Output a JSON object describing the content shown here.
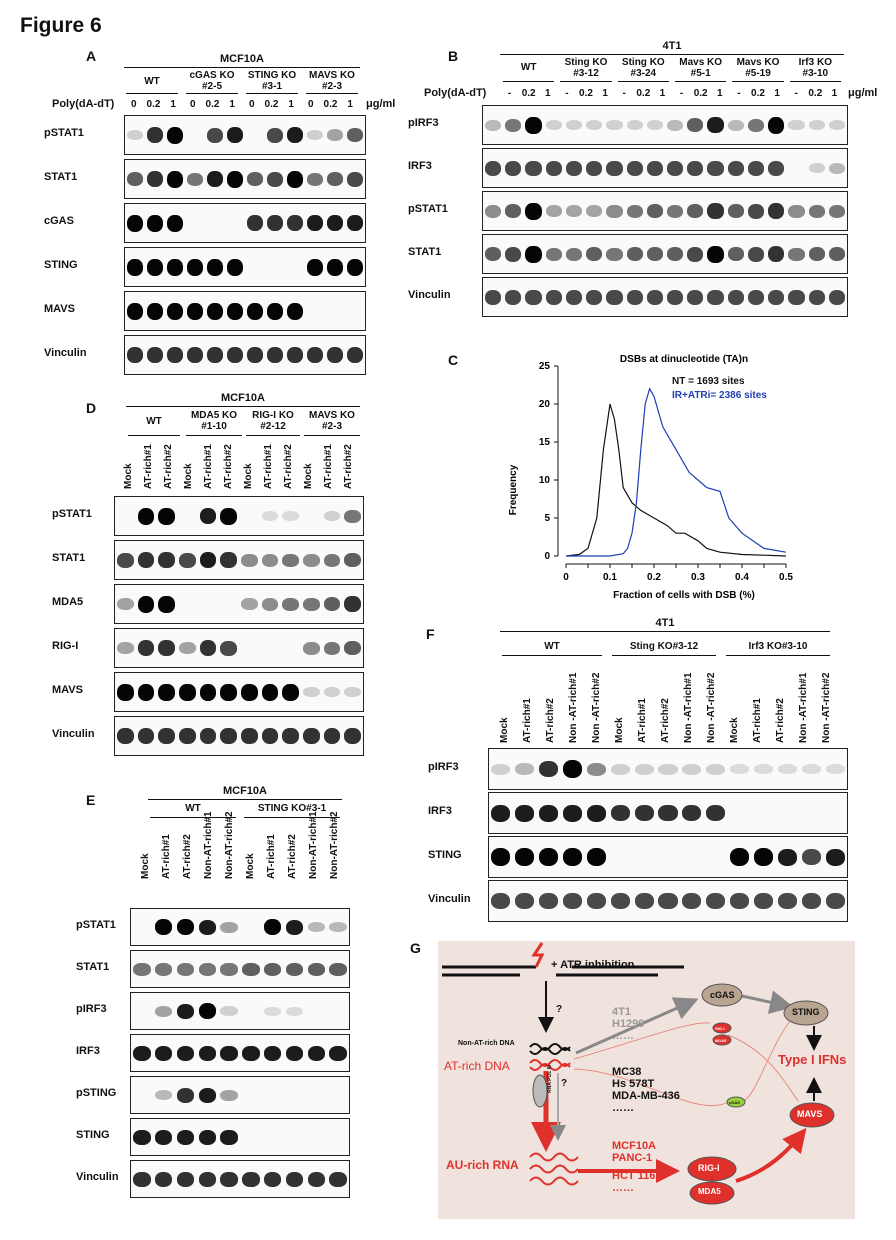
{
  "figure_title": "Figure 6",
  "panelA": {
    "letter": "A",
    "cell_line": "MCF10A",
    "groups": [
      "WT",
      "cGAS KO\n#2-5",
      "STING KO\n#3-1",
      "MAVS KO\n#2-3"
    ],
    "treatment_label": "Poly(dA-dT)",
    "doses": [
      "0",
      "0.2",
      "1",
      "0",
      "0.2",
      "1",
      "0",
      "0.2",
      "1",
      "0",
      "0.2",
      "1"
    ],
    "unit": "μg/ml",
    "rows": [
      "pSTAT1",
      "STAT1",
      "cGAS",
      "STING",
      "MAVS",
      "Vinculin"
    ]
  },
  "panelB": {
    "letter": "B",
    "cell_line": "4T1",
    "groups": [
      "WT",
      "Sting KO\n#3-12",
      "Sting KO\n#3-24",
      "Mavs KO\n#5-1",
      "Mavs KO\n#5-19",
      "Irf3 KO\n#3-10"
    ],
    "treatment_label": "Poly(dA-dT)",
    "doses": [
      "-",
      "0.2",
      "1",
      "-",
      "0.2",
      "1",
      "-",
      "0.2",
      "1",
      "-",
      "0.2",
      "1",
      "-",
      "0.2",
      "1",
      "-",
      "0.2",
      "1"
    ],
    "unit": "μg/ml",
    "rows": [
      "pIRF3",
      "IRF3",
      "pSTAT1",
      "STAT1",
      "Vinculin"
    ]
  },
  "panelC": {
    "letter": "C"
  },
  "panelD": {
    "letter": "D",
    "cell_line": "MCF10A",
    "groups": [
      "WT",
      "MDA5 KO\n#1-10",
      "RIG-I KO\n#2-12",
      "MAVS KO\n#2-3"
    ],
    "lanes": [
      "Mock",
      "AT-rich#1",
      "AT-rich#2",
      "Mock",
      "AT-rich#1",
      "AT-rich#2",
      "Mock",
      "AT-rich#1",
      "AT-rich#2",
      "Mock",
      "AT-rich#1",
      "AT-rich#2"
    ],
    "rows": [
      "pSTAT1",
      "STAT1",
      "MDA5",
      "RIG-I",
      "MAVS",
      "Vinculin"
    ]
  },
  "panelE": {
    "letter": "E",
    "cell_line": "MCF10A",
    "groups": [
      "WT",
      "STING KO#3-1"
    ],
    "lanes": [
      "Mock",
      "AT-rich#1",
      "AT-rich#2",
      "Non-AT-rich#1",
      "Non-AT-rich#2",
      "Mock",
      "AT-rich#1",
      "AT-rich#2",
      "Non-AT-rich#1",
      "Non-AT-rich#2"
    ],
    "rows": [
      "pSTAT1",
      "STAT1",
      "pIRF3",
      "IRF3",
      "pSTING",
      "STING",
      "Vinculin"
    ]
  },
  "panelF": {
    "letter": "F",
    "cell_line": "4T1",
    "groups": [
      "WT",
      "Sting KO#3-12",
      "Irf3 KO#3-10"
    ],
    "lanes": [
      "Mock",
      "AT-rich#1",
      "AT-rich#2",
      "Non -AT-rich#1",
      "Non -AT-rich#2",
      "Mock",
      "AT-rich#1",
      "AT-rich#2",
      "Non -AT-rich#1",
      "Non -AT-rich#2",
      "Mock",
      "AT-rich#1",
      "AT-rich#2",
      "Non -AT-rich#1",
      "Non -AT-rich#2"
    ],
    "rows": [
      "pIRF3",
      "IRF3",
      "STING",
      "Vinculin"
    ]
  },
  "chart_data": {
    "type": "line",
    "title": "DSBs at dinucleotide (TA)n",
    "xlabel": "Fraction of cells with DSB (%)",
    "ylabel": "Frequency",
    "xlim": [
      0,
      0.5
    ],
    "ylim": [
      0,
      25
    ],
    "x_ticks": [
      "0",
      "0.05",
      "0.1",
      "0.15",
      "0.2",
      "0.25",
      "0.3",
      "0.35",
      "0.4",
      "0.45",
      "0.5"
    ],
    "y_ticks": [
      "0",
      "5",
      "10",
      "15",
      "20",
      "25"
    ],
    "series": [
      {
        "name": "NT = 1693 sites",
        "color": "#111111",
        "x": [
          0,
          0.03,
          0.05,
          0.07,
          0.085,
          0.1,
          0.11,
          0.12,
          0.13,
          0.15,
          0.17,
          0.2,
          0.23,
          0.25,
          0.27,
          0.3,
          0.32,
          0.35,
          0.4,
          0.45,
          0.5
        ],
        "y": [
          0,
          0.2,
          1,
          5,
          14,
          20,
          18,
          14,
          9,
          7,
          6,
          5,
          4,
          3,
          3,
          2,
          1,
          0.5,
          0.2,
          0.1,
          0
        ]
      },
      {
        "name": "IR+ATRi= 2386 sites",
        "color": "#1f3fb3",
        "x": [
          0,
          0.1,
          0.13,
          0.14,
          0.15,
          0.16,
          0.17,
          0.18,
          0.19,
          0.2,
          0.21,
          0.22,
          0.23,
          0.25,
          0.27,
          0.28,
          0.3,
          0.32,
          0.35,
          0.37,
          0.4,
          0.45,
          0.5
        ],
        "y": [
          0,
          0,
          0.3,
          1,
          3,
          7,
          14,
          20,
          22,
          21,
          19,
          17,
          16,
          14,
          12,
          11,
          10,
          9,
          8.5,
          5,
          3,
          1,
          0.5
        ]
      }
    ]
  },
  "panelG": {
    "letter": "G",
    "atr": "+ ATR inhibition",
    "question": "?",
    "non_at_dna": "Non-AT-rich DNA",
    "at_dna": "AT-rich DNA",
    "au_rna": "AU-rich RNA",
    "rna_pol": "RNA POL III",
    "q2": "?",
    "cells_top": [
      "4T1",
      "H1299",
      "……"
    ],
    "cells_mid": [
      "MC38",
      "Hs 578T",
      "MDA-MB-436",
      "……"
    ],
    "cells_red": [
      "MCF10A",
      "PANC-1",
      "",
      "HCT 116",
      "……"
    ],
    "cgas": "cGAS",
    "sting": "STING",
    "mavs": "MAVS",
    "rigi": "RIG-I",
    "mda5": "MDA5",
    "rigi_small": "RIG-I",
    "mda5_small": "MDA5",
    "cgas_small": "cGAS",
    "ifn": "Type I IFNs"
  }
}
